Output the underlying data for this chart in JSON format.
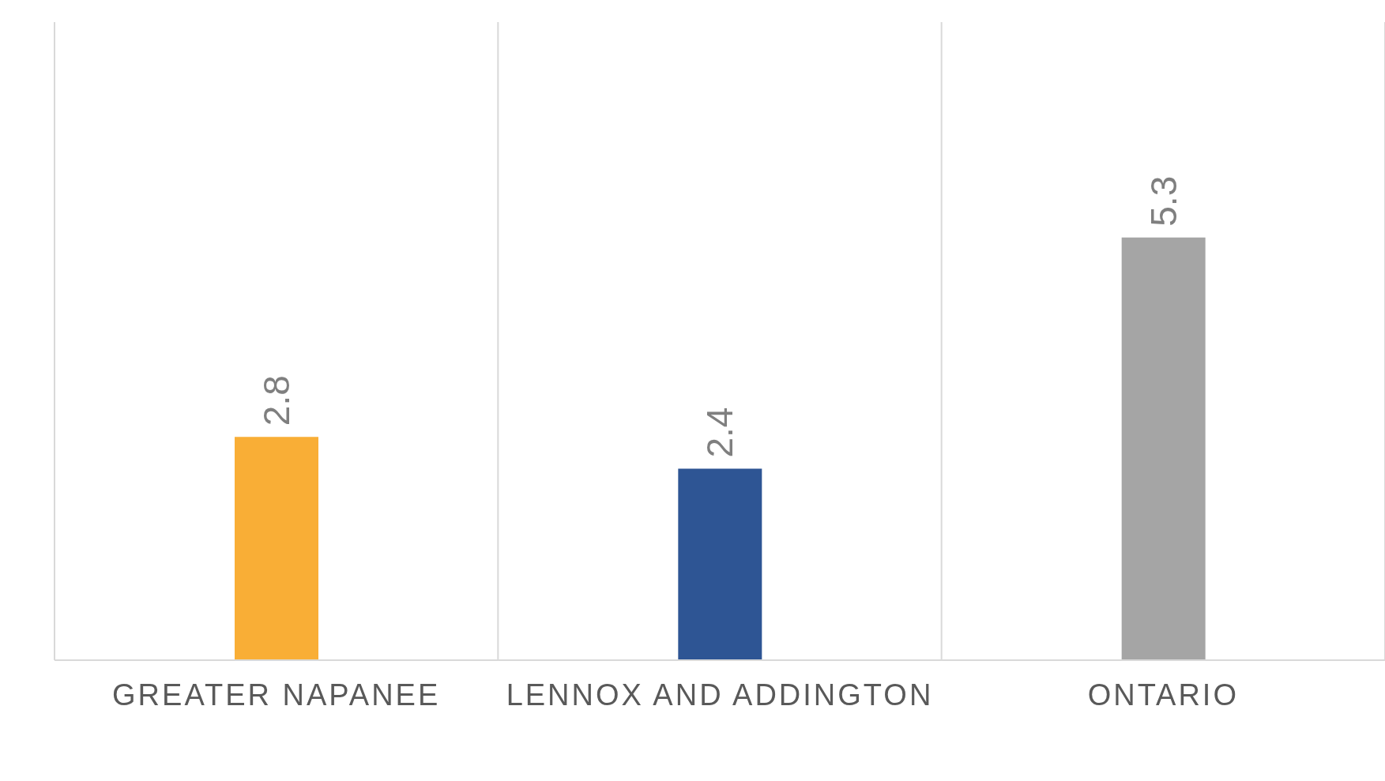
{
  "chart_data": {
    "type": "bar",
    "categories": [
      "GREATER NAPANEE",
      "LENNOX AND ADDINGTON",
      "ONTARIO"
    ],
    "values": [
      2.8,
      2.4,
      5.3
    ],
    "colors": [
      "#f9ae36",
      "#2e5594",
      "#a5a5a5"
    ],
    "data_labels": true,
    "grid": "x"
  }
}
